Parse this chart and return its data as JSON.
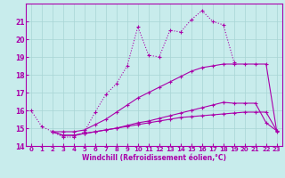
{
  "xlabel": "Windchill (Refroidissement éolien,°C)",
  "bg_color": "#c8ecec",
  "grid_color": "#a8d4d4",
  "line_color": "#aa00aa",
  "xlim": [
    -0.5,
    23.5
  ],
  "ylim": [
    14,
    22
  ],
  "yticks": [
    14,
    15,
    16,
    17,
    18,
    19,
    20,
    21
  ],
  "xticks": [
    0,
    1,
    2,
    3,
    4,
    5,
    6,
    7,
    8,
    9,
    10,
    11,
    12,
    13,
    14,
    15,
    16,
    17,
    18,
    19,
    20,
    21,
    22,
    23
  ],
  "line1_x": [
    0,
    1,
    2,
    3,
    4,
    5,
    6,
    7,
    8,
    9,
    10,
    11,
    12,
    13,
    14,
    15,
    16,
    17,
    18,
    19
  ],
  "line1_y": [
    16.0,
    15.1,
    14.8,
    14.5,
    14.5,
    14.8,
    15.9,
    16.9,
    17.5,
    18.5,
    20.7,
    19.1,
    19.0,
    20.5,
    20.4,
    21.1,
    21.6,
    21.0,
    20.8,
    18.7
  ],
  "line2_x": [
    2,
    3,
    4,
    5,
    6,
    7,
    8,
    9,
    10,
    11,
    12,
    13,
    14,
    15,
    16,
    17,
    18,
    19,
    20,
    21,
    22,
    23
  ],
  "line2_y": [
    14.8,
    14.8,
    14.8,
    14.9,
    15.2,
    15.5,
    15.9,
    16.3,
    16.7,
    17.0,
    17.3,
    17.6,
    17.9,
    18.2,
    18.4,
    18.5,
    18.6,
    18.6,
    18.6,
    18.6,
    18.6,
    14.8
  ],
  "line3_x": [
    2,
    3,
    4,
    5,
    6,
    7,
    8,
    9,
    10,
    11,
    12,
    13,
    14,
    15,
    16,
    17,
    18,
    19,
    20,
    21,
    22,
    23
  ],
  "line3_y": [
    14.8,
    14.6,
    14.6,
    14.7,
    14.8,
    14.9,
    15.0,
    15.15,
    15.3,
    15.4,
    15.55,
    15.7,
    15.85,
    16.0,
    16.15,
    16.3,
    16.45,
    16.4,
    16.4,
    16.4,
    15.3,
    14.85
  ],
  "line4_x": [
    2,
    3,
    4,
    5,
    6,
    7,
    8,
    9,
    10,
    11,
    12,
    13,
    14,
    15,
    16,
    17,
    18,
    19,
    20,
    21,
    22,
    23
  ],
  "line4_y": [
    14.8,
    14.6,
    14.6,
    14.7,
    14.8,
    14.9,
    15.0,
    15.1,
    15.2,
    15.3,
    15.4,
    15.5,
    15.6,
    15.65,
    15.7,
    15.75,
    15.8,
    15.85,
    15.9,
    15.9,
    15.9,
    14.85
  ]
}
